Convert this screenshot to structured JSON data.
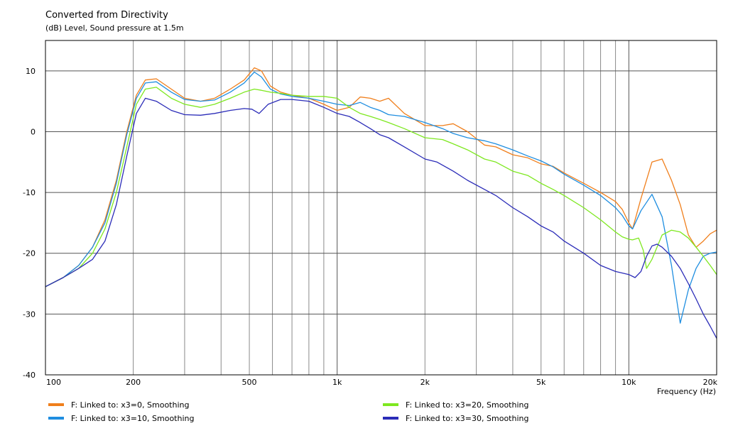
{
  "chart_data": {
    "type": "line",
    "title": "Converted from Directivity",
    "subtitle": "(dB)  Level, Sound pressure at 1.5m",
    "xlabel": "Frequency  (Hz)",
    "x_scale": "log",
    "xlim": [
      100,
      20000
    ],
    "ylim": [
      -40,
      15
    ],
    "x_tick_values": [
      100,
      200,
      500,
      1000,
      2000,
      5000,
      10000,
      20000
    ],
    "x_tick_labels": [
      "100",
      "200",
      "500",
      "1k",
      "2k",
      "5k",
      "10k",
      "20k"
    ],
    "y_tick_values": [
      10,
      0,
      -10,
      -20,
      -30,
      -40
    ],
    "y_tick_labels": [
      "10",
      "0",
      "-10",
      "-20",
      "-30",
      "-40"
    ],
    "grid": true,
    "legend_position": "bottom",
    "series": [
      {
        "name": "F: Linked to: x3=0, Smoothing",
        "color": "#f07f1c",
        "x": [
          100,
          115,
          130,
          145,
          160,
          175,
          190,
          205,
          220,
          240,
          270,
          300,
          340,
          380,
          430,
          480,
          520,
          550,
          590,
          640,
          700,
          800,
          900,
          1000,
          1100,
          1200,
          1300,
          1400,
          1500,
          1700,
          2000,
          2300,
          2500,
          2800,
          3200,
          3500,
          4000,
          4500,
          5000,
          5500,
          6000,
          7000,
          8000,
          9000,
          9500,
          10000,
          10300,
          11000,
          12000,
          13000,
          14000,
          15000,
          16000,
          17000,
          18000,
          19000,
          20000
        ],
        "y": [
          -25.5,
          -24,
          -22,
          -19,
          -14.5,
          -8,
          0,
          6,
          8.5,
          8.7,
          7,
          5.5,
          5,
          5.5,
          7,
          8.5,
          10.5,
          10,
          7.5,
          6.5,
          6,
          5.5,
          4.5,
          3.5,
          4,
          5.7,
          5.5,
          5,
          5.5,
          3,
          1,
          1,
          1.3,
          0,
          -2.2,
          -2.5,
          -3.8,
          -4.3,
          -5.3,
          -5.7,
          -6.8,
          -8.5,
          -10,
          -11.5,
          -12.8,
          -15,
          -16,
          -11,
          -5,
          -4.5,
          -8,
          -12,
          -17,
          -19,
          -18,
          -16.8,
          -16.2
        ]
      },
      {
        "name": "F: Linked to: x3=10, Smoothing",
        "color": "#1f8ee0",
        "x": [
          100,
          115,
          130,
          145,
          160,
          175,
          190,
          205,
          220,
          240,
          270,
          300,
          340,
          380,
          430,
          480,
          520,
          550,
          590,
          640,
          700,
          800,
          900,
          1000,
          1100,
          1200,
          1300,
          1400,
          1500,
          1700,
          2000,
          2300,
          2500,
          2800,
          3200,
          3500,
          4000,
          4500,
          5000,
          5500,
          6000,
          7000,
          8000,
          9000,
          9500,
          10000,
          10300,
          11000,
          12000,
          13000,
          14000,
          15000,
          16000,
          17000,
          18000,
          19000,
          20000
        ],
        "y": [
          -25.5,
          -24,
          -22,
          -19,
          -15,
          -8.5,
          -0.5,
          5.5,
          8,
          8.2,
          6.5,
          5.3,
          5,
          5.2,
          6.5,
          8,
          9.8,
          9,
          7,
          6.2,
          5.8,
          5.5,
          5,
          4.5,
          4.3,
          4.8,
          4,
          3.5,
          2.8,
          2.5,
          1.5,
          0.5,
          -0.3,
          -1,
          -1.5,
          -2,
          -3,
          -4,
          -4.8,
          -5.8,
          -7,
          -8.8,
          -10.5,
          -12.5,
          -13.8,
          -15.5,
          -16,
          -13,
          -10.3,
          -14,
          -22,
          -31.5,
          -26,
          -22.5,
          -20.5,
          -20,
          -19.8
        ]
      },
      {
        "name": "F: Linked to: x3=20, Smoothing",
        "color": "#7ee820",
        "x": [
          100,
          115,
          130,
          145,
          160,
          175,
          190,
          205,
          220,
          240,
          270,
          300,
          340,
          380,
          430,
          480,
          520,
          550,
          590,
          640,
          700,
          800,
          900,
          1000,
          1100,
          1200,
          1300,
          1400,
          1500,
          1700,
          2000,
          2300,
          2500,
          2800,
          3200,
          3500,
          4000,
          4500,
          5000,
          5500,
          6000,
          7000,
          8000,
          9000,
          9500,
          10000,
          10300,
          10800,
          11200,
          11500,
          12000,
          13000,
          14000,
          15000,
          16000,
          17000,
          18000,
          19000,
          20000
        ],
        "y": [
          -25.5,
          -24,
          -22.5,
          -20,
          -16,
          -10,
          -2.5,
          4.5,
          7,
          7.3,
          5.5,
          4.5,
          4,
          4.5,
          5.5,
          6.5,
          7,
          6.8,
          6.5,
          6.3,
          6,
          5.8,
          5.8,
          5.5,
          4,
          3,
          2.5,
          2,
          1.5,
          0.5,
          -1,
          -1.3,
          -2,
          -3,
          -4.5,
          -5,
          -6.5,
          -7.2,
          -8.5,
          -9.5,
          -10.5,
          -12.5,
          -14.5,
          -16.5,
          -17.3,
          -17.7,
          -17.8,
          -17.5,
          -19.5,
          -22.5,
          -21,
          -17,
          -16.2,
          -16.5,
          -17.5,
          -19,
          -20.5,
          -22,
          -23.5
        ]
      },
      {
        "name": "F: Linked to: x3=30, Smoothing",
        "color": "#2b2cb8",
        "x": [
          100,
          115,
          130,
          145,
          160,
          175,
          190,
          205,
          220,
          240,
          270,
          300,
          340,
          380,
          430,
          480,
          510,
          540,
          580,
          640,
          700,
          800,
          900,
          1000,
          1100,
          1200,
          1300,
          1400,
          1500,
          1700,
          2000,
          2200,
          2500,
          2800,
          3200,
          3500,
          4000,
          4500,
          5000,
          5500,
          6000,
          7000,
          8000,
          9000,
          10000,
          10500,
          11000,
          11500,
          12000,
          12500,
          13000,
          14000,
          15000,
          16000,
          17000,
          18000,
          19000,
          20000
        ],
        "y": [
          -25.5,
          -24,
          -22.5,
          -21,
          -18,
          -12,
          -4,
          3,
          5.5,
          5,
          3.5,
          2.8,
          2.7,
          3,
          3.5,
          3.8,
          3.7,
          3,
          4.5,
          5.3,
          5.3,
          5,
          4,
          3,
          2.5,
          1.5,
          0.5,
          -0.5,
          -1,
          -2.5,
          -4.5,
          -5,
          -6.5,
          -8,
          -9.5,
          -10.5,
          -12.5,
          -14,
          -15.5,
          -16.5,
          -18,
          -20,
          -22,
          -23,
          -23.5,
          -24,
          -23,
          -20.5,
          -18.8,
          -18.5,
          -19,
          -20.5,
          -22.5,
          -25,
          -27.5,
          -30,
          -32,
          -34
        ]
      }
    ]
  }
}
